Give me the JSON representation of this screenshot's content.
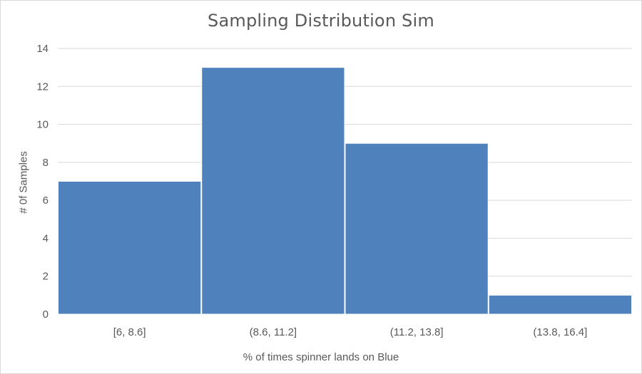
{
  "chart_data": {
    "type": "bar",
    "title": "Sampling Distribution Sim",
    "xlabel": "% of  times spinner lands on Blue",
    "ylabel": "# 0f Samples",
    "categories": [
      "[6, 8.6]",
      "(8.6, 11.2]",
      "(11.2, 13.8]",
      "(13.8, 16.4]"
    ],
    "values": [
      7,
      13,
      9,
      1
    ],
    "ylim": [
      0,
      14
    ],
    "yticks": [
      0,
      2,
      4,
      6,
      8,
      10,
      12,
      14
    ],
    "grid": true,
    "legend": "none",
    "bar_color": "#4F81BD",
    "gridline_color": "#D9D9D9"
  }
}
